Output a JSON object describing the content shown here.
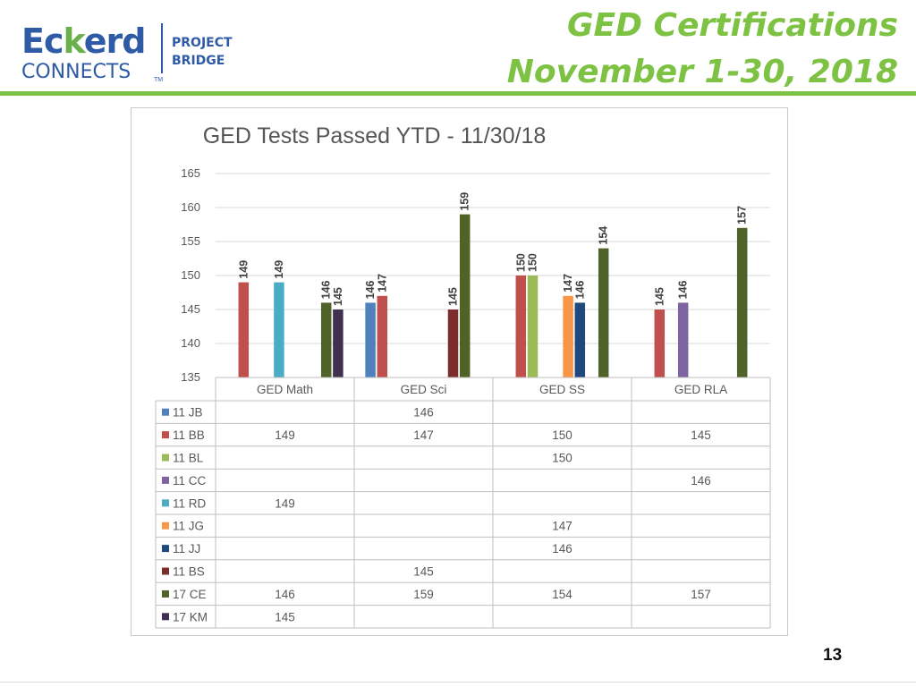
{
  "logo": {
    "eckerd_prefix": "Ec",
    "eckerd_k": "k",
    "eckerd_suffix": "erd",
    "connects": "CONNECTS",
    "tm": "TM",
    "project_line1": "PROJECT",
    "project_line2": "BRIDGE"
  },
  "header": {
    "title_line1": "GED Certifications",
    "title_line2": "November 1-30, 2018"
  },
  "page_number": "13",
  "colors": {
    "accent_green": "#7dc242",
    "brand_blue": "#2e5aa6"
  },
  "chart_data": {
    "type": "bar",
    "title": "GED Tests Passed YTD - 11/30/18",
    "xlabel": "",
    "ylabel": "",
    "ylim": [
      135,
      165
    ],
    "yticks": [
      135,
      140,
      145,
      150,
      155,
      160,
      165
    ],
    "grid": true,
    "legend": "data-table-below",
    "categories": [
      "GED Math",
      "GED Sci",
      "GED SS",
      "GED RLA"
    ],
    "series": [
      {
        "name": "11 JB",
        "color": "#4f81bd",
        "values": [
          null,
          146,
          null,
          null
        ]
      },
      {
        "name": "11 BB",
        "color": "#c0504d",
        "values": [
          149,
          147,
          150,
          145
        ]
      },
      {
        "name": "11 BL",
        "color": "#9bbb59",
        "values": [
          null,
          null,
          150,
          null
        ]
      },
      {
        "name": "11 CC",
        "color": "#8064a2",
        "values": [
          null,
          null,
          null,
          146
        ]
      },
      {
        "name": "11 RD",
        "color": "#4bacc6",
        "values": [
          149,
          null,
          null,
          null
        ]
      },
      {
        "name": "11 JG",
        "color": "#f79646",
        "values": [
          null,
          null,
          147,
          null
        ]
      },
      {
        "name": "11 JJ",
        "color": "#1f497d",
        "values": [
          null,
          null,
          146,
          null
        ]
      },
      {
        "name": "11 BS",
        "color": "#7b2c2c",
        "values": [
          null,
          145,
          null,
          null
        ]
      },
      {
        "name": "17 CE",
        "color": "#4f6228",
        "values": [
          146,
          159,
          154,
          157
        ]
      },
      {
        "name": "17 KM",
        "color": "#403151",
        "values": [
          145,
          null,
          null,
          null
        ]
      }
    ]
  }
}
